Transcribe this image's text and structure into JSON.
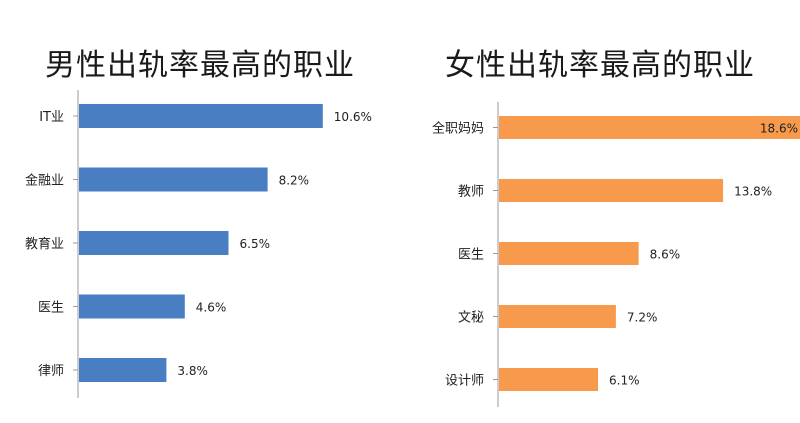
{
  "chart_data": [
    {
      "type": "bar",
      "orientation": "horizontal",
      "title": "男性出轨率最高的职业",
      "categories": [
        "IT业",
        "金融业",
        "教育业",
        "医生",
        "律师"
      ],
      "values": [
        10.6,
        8.2,
        6.5,
        4.6,
        3.8
      ],
      "value_labels": [
        "10.6%",
        "8.2%",
        "6.5%",
        "4.6%",
        "3.8%"
      ],
      "color": "#4A7EC2",
      "xlim": [
        0,
        12
      ],
      "grid": false,
      "legend": "none"
    },
    {
      "type": "bar",
      "orientation": "horizontal",
      "title": "女性出轨率最高的职业",
      "categories": [
        "全职妈妈",
        "教师",
        "医生",
        "文秘",
        "设计师"
      ],
      "values": [
        18.6,
        13.8,
        8.6,
        7.2,
        6.1
      ],
      "value_labels": [
        "18.6%",
        "13.8%",
        "8.6%",
        "7.2%",
        "6.1%"
      ],
      "color": "#F79A4B",
      "xlim": [
        0,
        18.6
      ],
      "grid": false,
      "legend": "none"
    }
  ]
}
